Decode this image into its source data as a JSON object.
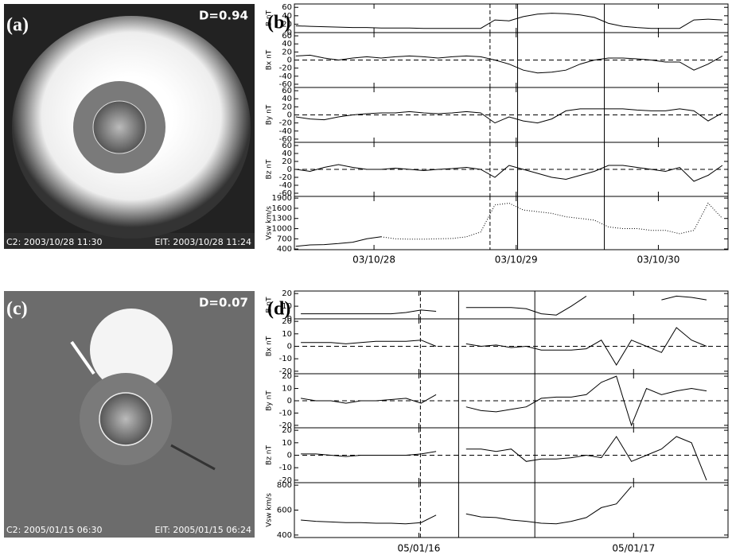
{
  "images": [
    {
      "label": "(a)",
      "metric": "D=0.94",
      "left_caption": "C2: 2003/10/28 11:30",
      "right_caption": "EIT: 2003/10/28 11:24"
    },
    {
      "label": "(c)",
      "metric": "D=0.07",
      "left_caption": "C2: 2005/01/15 06:30",
      "right_caption": "EIT: 2005/01/15 06:24"
    }
  ],
  "chart_data": [
    {
      "type": "line",
      "label": "(b)",
      "xlim": [
        -0.56,
        2.49
      ],
      "xticks": [
        {
          "value": 0,
          "label": "03/10/28"
        },
        {
          "value": 1,
          "label": "03/10/29"
        },
        {
          "value": 2,
          "label": "03/10/30"
        }
      ],
      "markers": [
        {
          "x": 0.816,
          "style": "dashed"
        },
        {
          "x": 1.01,
          "style": "solid"
        },
        {
          "x": 1.62,
          "style": "solid"
        }
      ],
      "x": [
        -0.55,
        -0.45,
        -0.35,
        -0.25,
        -0.15,
        -0.05,
        0.05,
        0.15,
        0.25,
        0.35,
        0.45,
        0.55,
        0.65,
        0.75,
        0.85,
        0.95,
        1.05,
        1.15,
        1.25,
        1.35,
        1.45,
        1.55,
        1.65,
        1.75,
        1.85,
        1.95,
        2.05,
        2.15,
        2.25,
        2.35,
        2.45
      ],
      "panels": [
        {
          "ylabel": "B nT",
          "ylim": [
            0,
            68
          ],
          "yticks": [
            0,
            20,
            40,
            60
          ],
          "zeroline": false,
          "values": [
            16,
            15,
            14,
            13,
            12,
            12,
            11,
            11,
            11,
            10,
            10,
            10,
            10,
            10,
            30,
            28,
            38,
            44,
            46,
            45,
            42,
            36,
            22,
            15,
            12,
            10,
            10,
            10,
            30,
            32,
            30
          ]
        },
        {
          "ylabel": "Bx nT",
          "ylim": [
            -68,
            68
          ],
          "yticks": [
            -60,
            -40,
            -20,
            0,
            20,
            40,
            60
          ],
          "zeroline": true,
          "values": [
            10,
            12,
            5,
            0,
            5,
            8,
            5,
            8,
            10,
            8,
            5,
            8,
            10,
            8,
            0,
            -10,
            -25,
            -32,
            -30,
            -25,
            -10,
            0,
            5,
            5,
            3,
            0,
            -5,
            -5,
            -25,
            -10,
            10
          ]
        },
        {
          "ylabel": "By nT",
          "ylim": [
            -68,
            68
          ],
          "yticks": [
            -60,
            -40,
            -20,
            0,
            20,
            40,
            60
          ],
          "zeroline": true,
          "values": [
            -5,
            -10,
            -12,
            -5,
            0,
            3,
            5,
            5,
            8,
            5,
            3,
            5,
            8,
            5,
            -20,
            -5,
            -15,
            -20,
            -10,
            10,
            15,
            15,
            15,
            15,
            12,
            10,
            10,
            15,
            10,
            -15,
            5
          ]
        },
        {
          "ylabel": "Bz nT",
          "ylim": [
            -68,
            68
          ],
          "yticks": [
            -60,
            -40,
            -20,
            0,
            20,
            40,
            60
          ],
          "zeroline": true,
          "values": [
            0,
            -5,
            5,
            12,
            5,
            0,
            0,
            3,
            0,
            -3,
            0,
            2,
            5,
            0,
            -20,
            10,
            0,
            -10,
            -20,
            -25,
            -15,
            -5,
            10,
            10,
            5,
            0,
            -5,
            5,
            -30,
            -15,
            10
          ]
        },
        {
          "ylabel": "Vsw km/s",
          "ylim": [
            380,
            1950
          ],
          "yticks": [
            400,
            700,
            1000,
            1300,
            1600,
            1900
          ],
          "zeroline": false,
          "values": [
            480,
            520,
            530,
            560,
            600,
            700,
            760,
            null,
            null,
            null,
            null,
            null,
            null,
            null,
            null,
            null,
            null,
            null,
            null,
            null,
            null,
            null,
            null,
            null,
            null,
            null,
            null,
            null,
            null,
            null,
            null
          ],
          "values_dotted": [
            null,
            null,
            null,
            null,
            null,
            null,
            760,
            700,
            690,
            690,
            700,
            710,
            760,
            900,
            1700,
            1750,
            1550,
            1500,
            1450,
            1350,
            1300,
            1250,
            1050,
            1000,
            1000,
            950,
            950,
            850,
            950,
            1750,
            1300
          ]
        }
      ]
    },
    {
      "type": "line",
      "label": "(d)",
      "xlim": [
        -0.58,
        1.44
      ],
      "xticks": [
        {
          "value": 0,
          "label": "05/01/16"
        },
        {
          "value": 1,
          "label": "05/01/17"
        }
      ],
      "markers": [
        {
          "x": 0.007,
          "style": "dashed"
        },
        {
          "x": 0.185,
          "style": "solid"
        },
        {
          "x": 0.54,
          "style": "solid"
        }
      ],
      "x": [
        -0.55,
        -0.48,
        -0.41,
        -0.34,
        -0.27,
        -0.2,
        -0.13,
        -0.06,
        0.01,
        0.08,
        0.15,
        0.22,
        0.29,
        0.36,
        0.43,
        0.5,
        0.57,
        0.64,
        0.71,
        0.78,
        0.85,
        0.92,
        0.99,
        1.06,
        1.13,
        1.2,
        1.27,
        1.34
      ],
      "panels": [
        {
          "ylabel": "B nT",
          "ylim": [
            0,
            22
          ],
          "yticks": [
            0,
            10,
            20
          ],
          "zeroline": false,
          "values": [
            4,
            4,
            4,
            4,
            4,
            4,
            4,
            5,
            7,
            6,
            null,
            9,
            9,
            9,
            9,
            8,
            4,
            3,
            10,
            18,
            null,
            null,
            null,
            null,
            15,
            18,
            17,
            15
          ]
        },
        {
          "ylabel": "Bx nT",
          "ylim": [
            -22,
            22
          ],
          "yticks": [
            -20,
            -10,
            0,
            10,
            20
          ],
          "zeroline": true,
          "values": [
            3,
            3,
            3,
            2,
            3,
            4,
            4,
            4,
            5,
            0,
            null,
            2,
            0,
            1,
            -1,
            0,
            -3,
            -3,
            -3,
            -2,
            5,
            -15,
            5,
            0,
            -5,
            15,
            5,
            0
          ]
        },
        {
          "ylabel": "By nT",
          "ylim": [
            -22,
            22
          ],
          "yticks": [
            -20,
            -10,
            0,
            10,
            20
          ],
          "zeroline": true,
          "values": [
            2,
            0,
            0,
            -2,
            0,
            0,
            1,
            2,
            -2,
            5,
            null,
            -5,
            -8,
            -9,
            -7,
            -5,
            2,
            3,
            3,
            5,
            15,
            20,
            -20,
            10,
            5,
            8,
            10,
            8
          ]
        },
        {
          "ylabel": "Bz nT",
          "ylim": [
            -22,
            22
          ],
          "yticks": [
            -20,
            -10,
            0,
            10,
            20
          ],
          "zeroline": true,
          "values": [
            1,
            1,
            0,
            -1,
            0,
            0,
            0,
            0,
            1,
            3,
            null,
            5,
            5,
            3,
            5,
            -5,
            -3,
            -3,
            -2,
            0,
            -2,
            15,
            -5,
            0,
            5,
            15,
            10,
            -20
          ]
        },
        {
          "ylabel": "Vsw km/s",
          "ylim": [
            380,
            820
          ],
          "yticks": [
            400,
            600,
            800
          ],
          "zeroline": false,
          "values": [
            520,
            510,
            505,
            500,
            500,
            495,
            495,
            490,
            500,
            560,
            null,
            570,
            545,
            540,
            520,
            510,
            495,
            490,
            510,
            540,
            620,
            650,
            790,
            null,
            null,
            null,
            null,
            null
          ]
        }
      ]
    }
  ]
}
